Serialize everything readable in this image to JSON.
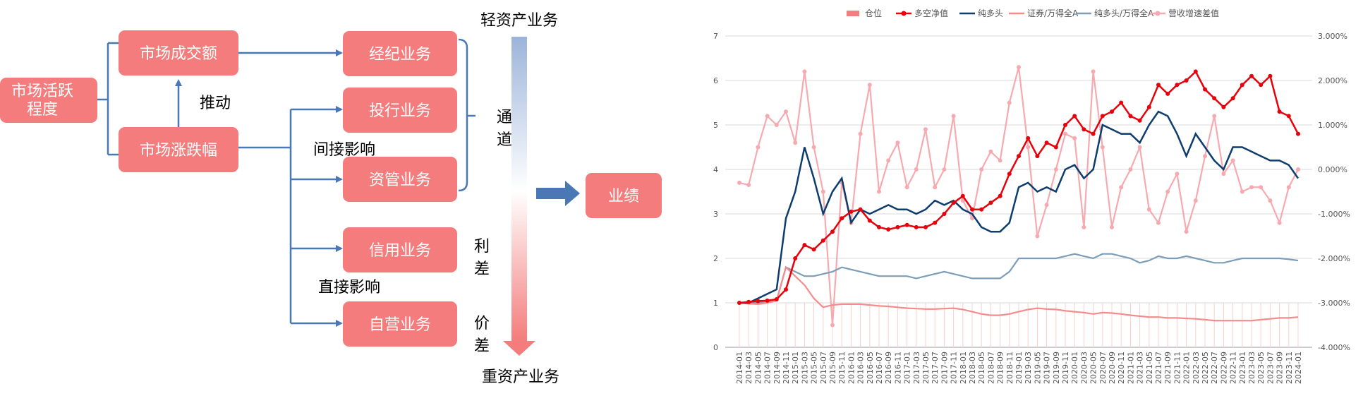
{
  "diagram": {
    "colors": {
      "box": "#f47c7c",
      "arrow": "#4a78b5",
      "text": "#ffffff"
    },
    "boxes": {
      "activity": "市场活跃\n程度",
      "turnover": "市场成交额",
      "change": "市场涨跌幅",
      "brokerage": "经纪业务",
      "ib": "投行业务",
      "am": "资管业务",
      "credit": "信用业务",
      "prop": "自营业务",
      "perf": "业绩"
    },
    "labels": {
      "drive": "推动",
      "indirect": "间接影响",
      "direct": "直接影响",
      "channel": "通\n道",
      "spread": "利\n差",
      "price_diff": "价\n差",
      "light_asset": "轻资产业务",
      "heavy_asset": "重资产业务"
    }
  },
  "chart_data": {
    "type": "line",
    "title": "",
    "legend": [
      "仓位",
      "多空净值",
      "纯多头",
      "证券/万得全A",
      "纯多头/万得全A",
      "营收增速差值"
    ],
    "legend_position": "top",
    "colors": {
      "仓位": "#f47c7c",
      "多空净值": "#e8000b",
      "纯多头": "#0d3c6e",
      "证券/万得全A": "#f58b8b",
      "纯多头/万得全A": "#7c9db8",
      "营收增速差值": "#f6aab0"
    },
    "y_left": {
      "min": 0,
      "max": 7,
      "ticks": [
        "0",
        "1",
        "2",
        "3",
        "4",
        "5",
        "6",
        "7"
      ]
    },
    "y_right": {
      "min": -0.04,
      "max": 0.03,
      "ticks": [
        "-4.000%",
        "-3.000%",
        "-2.000%",
        "-1.000%",
        "0.000%",
        "1.000%",
        "2.000%",
        "3.000%"
      ]
    },
    "x_labels": [
      "2014-01",
      "2014-03",
      "2014-05",
      "2014-07",
      "2014-09",
      "2014-11",
      "2015-01",
      "2015-03",
      "2015-05",
      "2015-07",
      "2015-09",
      "2015-11",
      "2016-01",
      "2016-03",
      "2016-05",
      "2016-07",
      "2016-09",
      "2016-11",
      "2017-01",
      "2017-03",
      "2017-05",
      "2017-07",
      "2017-09",
      "2017-11",
      "2018-01",
      "2018-03",
      "2018-05",
      "2018-07",
      "2018-09",
      "2018-11",
      "2019-01",
      "2019-03",
      "2019-05",
      "2019-07",
      "2019-09",
      "2019-11",
      "2020-01",
      "2020-03",
      "2020-05",
      "2020-07",
      "2020-09",
      "2020-11",
      "2021-01",
      "2021-03",
      "2021-05",
      "2021-07",
      "2021-09",
      "2021-11",
      "2022-01",
      "2022-03",
      "2022-05",
      "2022-07",
      "2022-09",
      "2022-11",
      "2023-01",
      "2023-03",
      "2023-05",
      "2023-07",
      "2023-09",
      "2023-11",
      "2024-01"
    ],
    "series": [
      {
        "name": "多空净值",
        "axis": "left",
        "style": "line-marker",
        "values": [
          1.0,
          1.02,
          1.04,
          1.05,
          1.08,
          1.3,
          2.0,
          2.3,
          2.2,
          2.4,
          2.6,
          2.9,
          3.05,
          3.1,
          2.85,
          2.7,
          2.65,
          2.7,
          2.75,
          2.7,
          2.7,
          2.8,
          3.0,
          3.25,
          3.4,
          3.1,
          3.1,
          3.25,
          3.4,
          3.9,
          4.3,
          4.7,
          4.3,
          4.6,
          4.5,
          5.0,
          5.2,
          4.9,
          4.8,
          5.2,
          5.3,
          5.5,
          5.2,
          5.1,
          5.4,
          5.9,
          5.7,
          5.9,
          6.0,
          6.2,
          5.8,
          5.6,
          5.4,
          5.6,
          5.9,
          6.1,
          5.9,
          6.1,
          5.3,
          5.2,
          4.8
        ]
      },
      {
        "name": "纯多头",
        "axis": "left",
        "style": "line",
        "values": [
          1.0,
          1.0,
          1.1,
          1.2,
          1.3,
          2.9,
          3.5,
          4.5,
          3.8,
          3.0,
          3.5,
          3.8,
          2.8,
          3.1,
          3.0,
          3.1,
          3.2,
          3.1,
          3.1,
          3.0,
          3.1,
          3.3,
          3.2,
          3.3,
          3.1,
          3.0,
          2.7,
          2.6,
          2.6,
          2.8,
          3.6,
          3.7,
          3.5,
          3.6,
          3.5,
          4.0,
          4.1,
          3.8,
          4.0,
          5.0,
          4.9,
          4.8,
          4.8,
          4.6,
          5.0,
          5.3,
          5.2,
          4.8,
          4.3,
          4.8,
          4.5,
          4.2,
          4.0,
          4.5,
          4.5,
          4.4,
          4.3,
          4.2,
          4.2,
          4.1,
          3.8
        ]
      },
      {
        "name": "仓位",
        "axis": "left",
        "style": "bar",
        "values": [
          1.0,
          1.0,
          1.0,
          1.0,
          1.0,
          1.0,
          1.0,
          1.0,
          1.0,
          1.0,
          1.0,
          1.0,
          1.0,
          1.0,
          1.0,
          1.0,
          1.0,
          1.0,
          1.0,
          1.0,
          1.0,
          1.0,
          1.0,
          1.0,
          1.0,
          1.0,
          1.0,
          1.0,
          1.0,
          1.0,
          1.0,
          1.0,
          1.0,
          1.0,
          1.0,
          1.0,
          1.0,
          1.0,
          1.0,
          1.0,
          1.0,
          1.0,
          1.0,
          1.0,
          1.0,
          1.0,
          1.0,
          1.0,
          1.0,
          1.0,
          1.0,
          1.0,
          1.0,
          1.0,
          1.0,
          1.0,
          1.0,
          1.0,
          1.0,
          1.0,
          1.0
        ]
      },
      {
        "name": "证券/万得全A",
        "axis": "left",
        "style": "line",
        "values": [
          1.0,
          0.98,
          0.97,
          1.0,
          1.05,
          1.8,
          1.6,
          1.4,
          1.1,
          0.9,
          0.95,
          0.97,
          0.97,
          0.97,
          0.95,
          0.93,
          0.92,
          0.9,
          0.88,
          0.87,
          0.86,
          0.86,
          0.87,
          0.88,
          0.85,
          0.8,
          0.75,
          0.72,
          0.72,
          0.75,
          0.8,
          0.85,
          0.88,
          0.86,
          0.85,
          0.82,
          0.8,
          0.78,
          0.75,
          0.78,
          0.77,
          0.75,
          0.72,
          0.7,
          0.68,
          0.68,
          0.66,
          0.66,
          0.65,
          0.64,
          0.62,
          0.6,
          0.6,
          0.6,
          0.6,
          0.6,
          0.62,
          0.64,
          0.66,
          0.66,
          0.68
        ]
      },
      {
        "name": "纯多头/万得全A",
        "axis": "left",
        "style": "line",
        "values": [
          1.0,
          0.99,
          1.0,
          1.02,
          1.05,
          1.8,
          1.7,
          1.6,
          1.6,
          1.65,
          1.7,
          1.8,
          1.75,
          1.7,
          1.65,
          1.6,
          1.6,
          1.6,
          1.6,
          1.55,
          1.6,
          1.65,
          1.7,
          1.65,
          1.6,
          1.55,
          1.55,
          1.55,
          1.55,
          1.7,
          2.0,
          2.0,
          2.0,
          2.0,
          2.0,
          2.05,
          2.1,
          2.05,
          2.0,
          2.1,
          2.1,
          2.05,
          2.0,
          1.9,
          1.95,
          2.05,
          2.0,
          2.0,
          2.05,
          2.0,
          1.95,
          1.9,
          1.9,
          1.95,
          2.0,
          2.0,
          2.0,
          2.0,
          2.0,
          1.98,
          1.95
        ]
      },
      {
        "name": "营收增速差值",
        "axis": "right",
        "style": "line-marker",
        "values": [
          -0.003,
          -0.0035,
          0.005,
          0.012,
          0.01,
          0.013,
          0.006,
          0.022,
          0.005,
          -0.005,
          -0.035,
          -0.003,
          -0.012,
          0.008,
          0.019,
          -0.005,
          0.002,
          0.006,
          -0.004,
          0.0,
          0.009,
          -0.004,
          0.0,
          0.012,
          -0.007,
          -0.011,
          0.0,
          0.004,
          0.002,
          0.015,
          0.023,
          0.005,
          -0.015,
          -0.008,
          0.0,
          0.008,
          0.007,
          -0.013,
          0.022,
          0.005,
          -0.013,
          -0.004,
          0.0,
          0.005,
          -0.009,
          -0.012,
          -0.005,
          -0.001,
          -0.014,
          -0.007,
          0.003,
          0.012,
          -0.001,
          0.002,
          -0.005,
          -0.004,
          -0.004,
          -0.007,
          -0.012,
          -0.004,
          0.0
        ]
      }
    ]
  }
}
